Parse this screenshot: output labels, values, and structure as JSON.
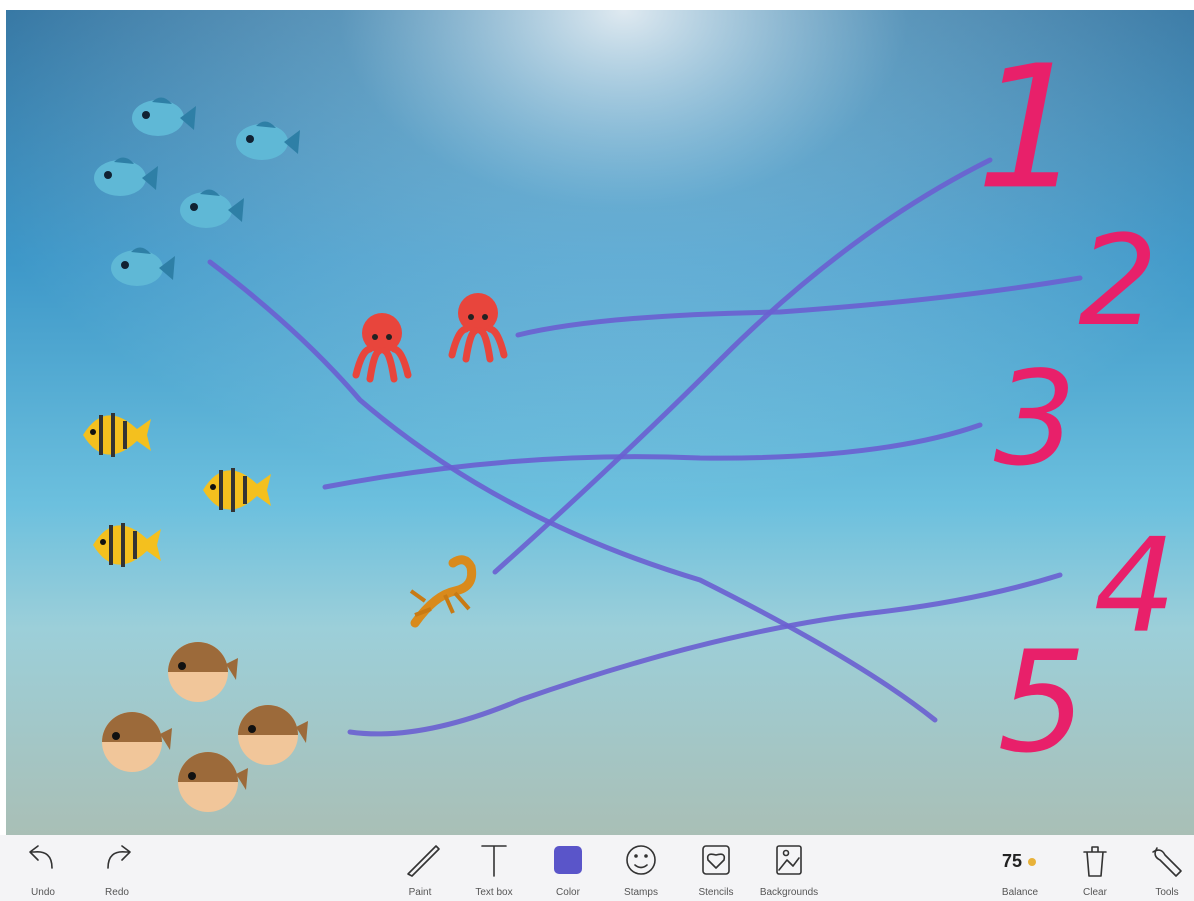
{
  "canvas": {
    "numbers": [
      "1",
      "2",
      "3",
      "4",
      "5"
    ]
  },
  "toolbar": {
    "undo": "Undo",
    "redo": "Redo",
    "paint": "Paint",
    "text_box": "Text box",
    "color": "Color",
    "stamps": "Stamps",
    "stencils": "Stencils",
    "backgrounds": "Backgrounds",
    "balance_value": "75",
    "balance": "Balance",
    "clear": "Clear",
    "tools": "Tools"
  }
}
